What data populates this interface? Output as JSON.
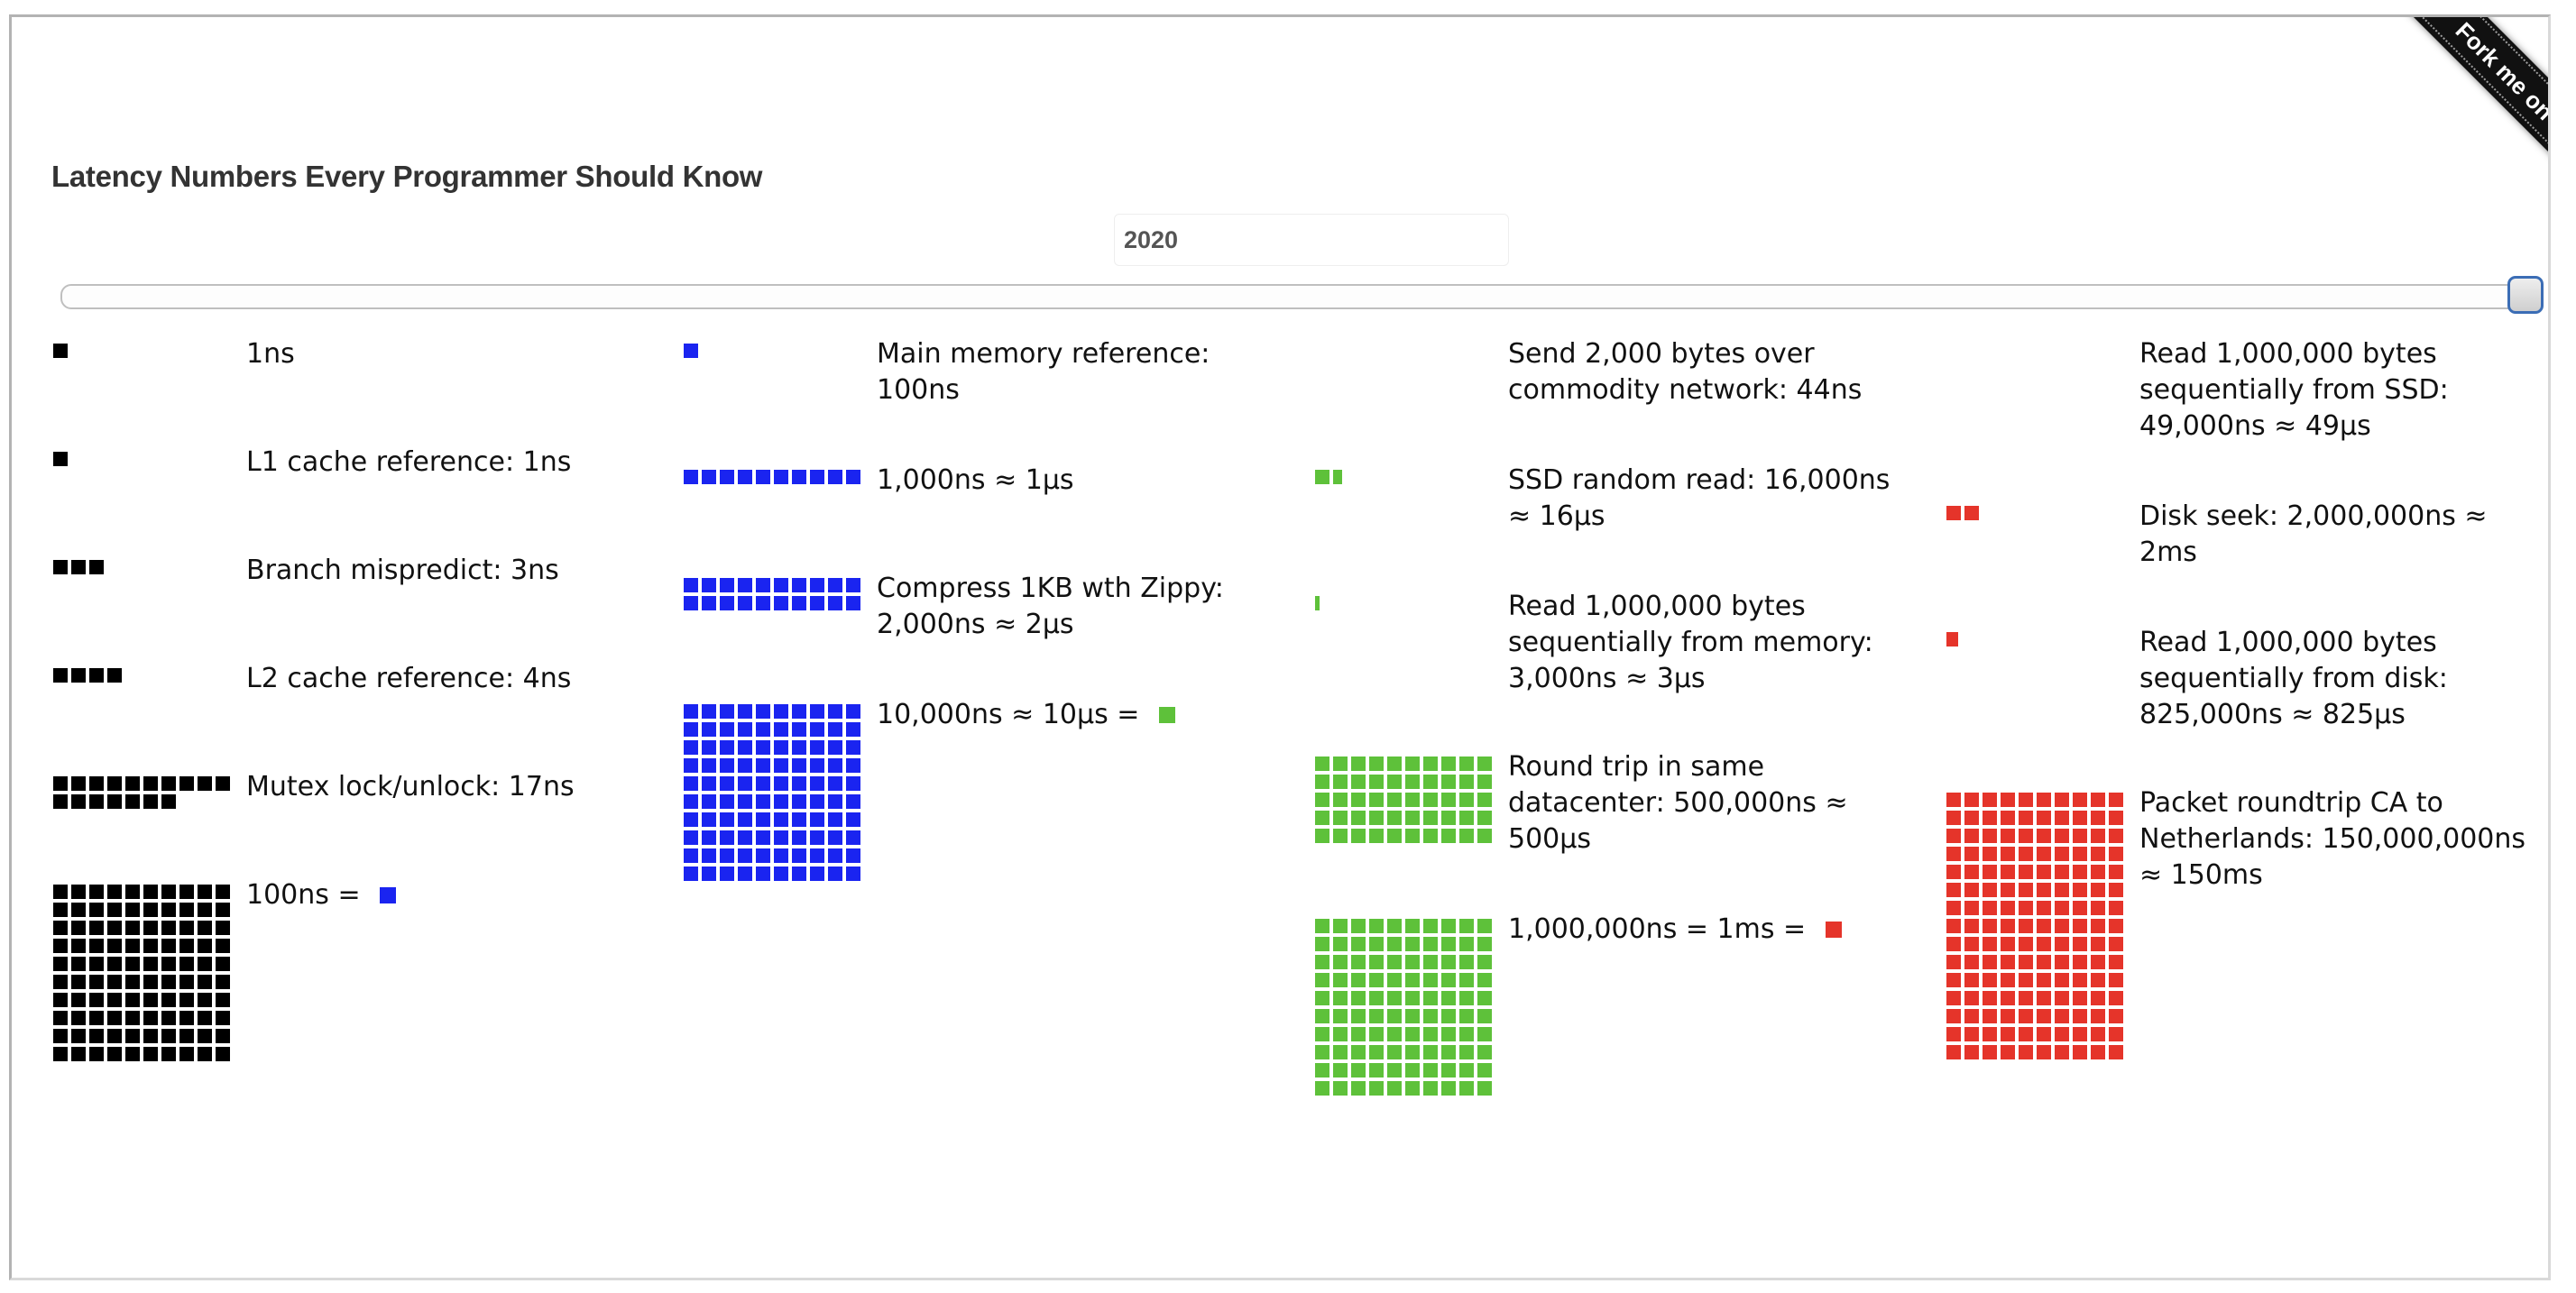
{
  "page": {
    "title": "Latency Numbers Every Programmer Should Know",
    "year": "2020",
    "ribbon": "Fork me on GitHub"
  },
  "colors": {
    "ns": "#000000",
    "hundred_ns": "#1a24f0",
    "ten_us": "#5ec13a",
    "ms": "#e5342a"
  },
  "columns": [
    [
      {
        "label": "1ns",
        "color": "ns",
        "unit_fraction": 1
      },
      {
        "label": "L1 cache reference: 1ns",
        "color": "ns",
        "unit_fraction": 1
      },
      {
        "label": "Branch mispredict: 3ns",
        "color": "ns",
        "unit_fraction": 3
      },
      {
        "label": "L2 cache reference: 4ns",
        "color": "ns",
        "unit_fraction": 4
      },
      {
        "label": "Mutex lock/unlock: 17ns",
        "color": "ns",
        "unit_fraction": 17
      },
      {
        "label": "100ns = ",
        "color": "ns",
        "unit_fraction": 100,
        "equals_color": "hundred_ns"
      }
    ],
    [
      {
        "label": "Main memory reference: 100ns",
        "color": "hundred_ns",
        "unit_fraction": 1
      },
      {
        "label": "1,000ns ≈ 1μs",
        "color": "hundred_ns",
        "unit_fraction": 10
      },
      {
        "label": "Compress 1KB wth Zippy: 2,000ns ≈ 2μs",
        "color": "hundred_ns",
        "unit_fraction": 20
      },
      {
        "label": "10,000ns ≈ 10μs = ",
        "color": "hundred_ns",
        "unit_fraction": 100,
        "equals_color": "ten_us"
      }
    ],
    [
      {
        "label": "Send 2,000 bytes over commodity network: 44ns",
        "color": "ten_us",
        "unit_fraction": 0
      },
      {
        "label": "SSD random read: 16,000ns ≈ 16μs",
        "color": "ten_us",
        "unit_fraction": 1.6
      },
      {
        "label": "Read 1,000,000 bytes sequentially from memory: 3,000ns ≈ 3μs",
        "color": "ten_us",
        "unit_fraction": 0.3
      },
      {
        "label": "Round trip in same datacenter: 500,000ns ≈ 500μs",
        "color": "ten_us",
        "unit_fraction": 50
      },
      {
        "label": "1,000,000ns = 1ms = ",
        "color": "ten_us",
        "unit_fraction": 100,
        "equals_color": "ms"
      }
    ],
    [
      {
        "label": "Read 1,000,000 bytes sequentially from SSD: 49,000ns ≈ 49μs",
        "color": "ms",
        "unit_fraction": 0
      },
      {
        "label": "Disk seek: 2,000,000ns ≈ 2ms",
        "color": "ms",
        "unit_fraction": 2
      },
      {
        "label": "Read 1,000,000 bytes sequentially from disk: 825,000ns ≈ 825μs",
        "color": "ms",
        "unit_fraction": 0.825
      },
      {
        "label": "Packet roundtrip CA to Netherlands: 150,000,000ns ≈ 150ms",
        "color": "ms",
        "unit_fraction": 150
      }
    ]
  ]
}
